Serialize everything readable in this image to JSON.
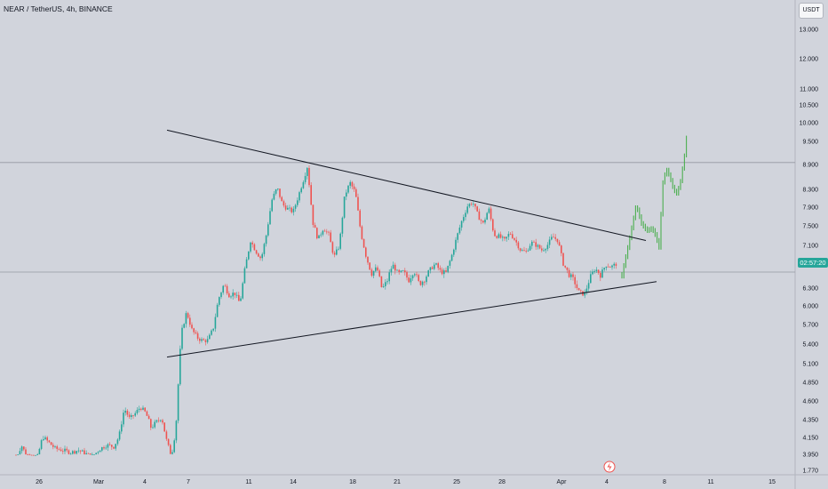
{
  "header": {
    "symbol": "NEAR / TetherUS",
    "interval": "4h",
    "exchange": "BINANCE",
    "currency": "USDT"
  },
  "last_price_tag": "02:57:20",
  "chart_data": {
    "type": "candlestick",
    "ylabel_ticks": [
      "13.000",
      "12.000",
      "11.000",
      "10.500",
      "10.000",
      "9.500",
      "8.900",
      "8.300",
      "7.900",
      "7.500",
      "7.100",
      "6.300",
      "6.000",
      "5.700",
      "5.400",
      "5.100",
      "4.850",
      "4.600",
      "4.350",
      "4.150",
      "3.950",
      "1.770"
    ],
    "xlabel_ticks": [
      "26",
      "Mar",
      "4",
      "7",
      "11",
      "14",
      "18",
      "21",
      "25",
      "28",
      "Apr",
      "4",
      "8",
      "11",
      "15"
    ],
    "trendlines": [
      {
        "name": "upper",
        "from": [
          "Mar 6",
          9.8
        ],
        "to": [
          "Apr 7",
          7.2
        ]
      },
      {
        "name": "lower",
        "from": [
          "Mar 6",
          5.2
        ],
        "to": [
          "Apr 8",
          6.4
        ]
      }
    ],
    "horizontal_lines": [
      8.95,
      6.55
    ],
    "colors": {
      "up": "#26a69a",
      "down": "#ef5350",
      "projection": "#4caf50",
      "line": "#131722"
    },
    "close_path": [
      [
        0,
        3.88
      ],
      [
        18,
        3.88
      ],
      [
        24,
        4.06
      ],
      [
        30,
        3.93
      ],
      [
        40,
        3.83
      ],
      [
        48,
        4.16
      ],
      [
        54,
        4.1
      ],
      [
        62,
        4.02
      ],
      [
        70,
        4.0
      ],
      [
        80,
        3.97
      ],
      [
        88,
        4.0
      ],
      [
        96,
        3.96
      ],
      [
        104,
        3.92
      ],
      [
        112,
        4.01
      ],
      [
        120,
        4.06
      ],
      [
        128,
        4.04
      ],
      [
        134,
        4.16
      ],
      [
        140,
        4.5
      ],
      [
        146,
        4.36
      ],
      [
        152,
        4.43
      ],
      [
        158,
        4.52
      ],
      [
        164,
        4.44
      ],
      [
        170,
        4.26
      ],
      [
        176,
        4.32
      ],
      [
        182,
        4.38
      ],
      [
        188,
        4.09
      ],
      [
        193,
        3.93
      ],
      [
        198,
        4.26
      ],
      [
        204,
        5.56
      ],
      [
        210,
        5.9
      ],
      [
        216,
        5.62
      ],
      [
        222,
        5.5
      ],
      [
        228,
        5.45
      ],
      [
        234,
        5.46
      ],
      [
        240,
        5.64
      ],
      [
        246,
        6.12
      ],
      [
        252,
        6.36
      ],
      [
        258,
        6.18
      ],
      [
        264,
        6.22
      ],
      [
        270,
        6.04
      ],
      [
        276,
        6.65
      ],
      [
        282,
        7.2
      ],
      [
        288,
        6.98
      ],
      [
        294,
        6.82
      ],
      [
        300,
        7.34
      ],
      [
        306,
        8.06
      ],
      [
        312,
        8.34
      ],
      [
        318,
        7.96
      ],
      [
        324,
        7.86
      ],
      [
        330,
        7.8
      ],
      [
        336,
        8.16
      ],
      [
        342,
        8.56
      ],
      [
        346,
        8.86
      ],
      [
        352,
        7.58
      ],
      [
        358,
        7.22
      ],
      [
        364,
        7.46
      ],
      [
        370,
        7.32
      ],
      [
        376,
        6.86
      ],
      [
        382,
        7.1
      ],
      [
        388,
        8.16
      ],
      [
        394,
        8.46
      ],
      [
        400,
        8.22
      ],
      [
        406,
        7.38
      ],
      [
        412,
        6.88
      ],
      [
        418,
        6.52
      ],
      [
        424,
        6.64
      ],
      [
        430,
        6.28
      ],
      [
        436,
        6.42
      ],
      [
        442,
        6.7
      ],
      [
        448,
        6.52
      ],
      [
        454,
        6.56
      ],
      [
        460,
        6.42
      ],
      [
        466,
        6.58
      ],
      [
        472,
        6.36
      ],
      [
        478,
        6.44
      ],
      [
        484,
        6.6
      ],
      [
        490,
        6.72
      ],
      [
        496,
        6.56
      ],
      [
        502,
        6.54
      ],
      [
        508,
        6.86
      ],
      [
        514,
        7.26
      ],
      [
        520,
        7.62
      ],
      [
        526,
        7.92
      ],
      [
        532,
        8.02
      ],
      [
        538,
        7.72
      ],
      [
        544,
        7.54
      ],
      [
        550,
        7.88
      ],
      [
        556,
        7.32
      ],
      [
        562,
        7.28
      ],
      [
        568,
        7.2
      ],
      [
        574,
        7.36
      ],
      [
        580,
        7.2
      ],
      [
        586,
        7.0
      ],
      [
        592,
        6.96
      ],
      [
        598,
        7.16
      ],
      [
        604,
        7.1
      ],
      [
        610,
        7.0
      ],
      [
        616,
        7.1
      ],
      [
        622,
        7.28
      ],
      [
        628,
        7.2
      ],
      [
        634,
        6.72
      ],
      [
        640,
        6.52
      ],
      [
        646,
        6.42
      ],
      [
        652,
        6.22
      ],
      [
        658,
        6.2
      ],
      [
        664,
        6.46
      ],
      [
        670,
        6.62
      ],
      [
        676,
        6.5
      ],
      [
        682,
        6.7
      ],
      [
        688,
        6.66
      ],
      [
        694,
        6.72
      ]
    ],
    "projection_path": [
      [
        700,
        6.5
      ],
      [
        706,
        7.0
      ],
      [
        712,
        7.55
      ],
      [
        716,
        7.95
      ],
      [
        722,
        7.55
      ],
      [
        728,
        7.4
      ],
      [
        734,
        7.45
      ],
      [
        738,
        7.3
      ],
      [
        742,
        7.05
      ],
      [
        746,
        8.45
      ],
      [
        750,
        8.8
      ],
      [
        754,
        8.6
      ],
      [
        758,
        8.3
      ],
      [
        762,
        8.2
      ],
      [
        766,
        8.5
      ],
      [
        770,
        9.05
      ],
      [
        774,
        9.9
      ]
    ]
  }
}
